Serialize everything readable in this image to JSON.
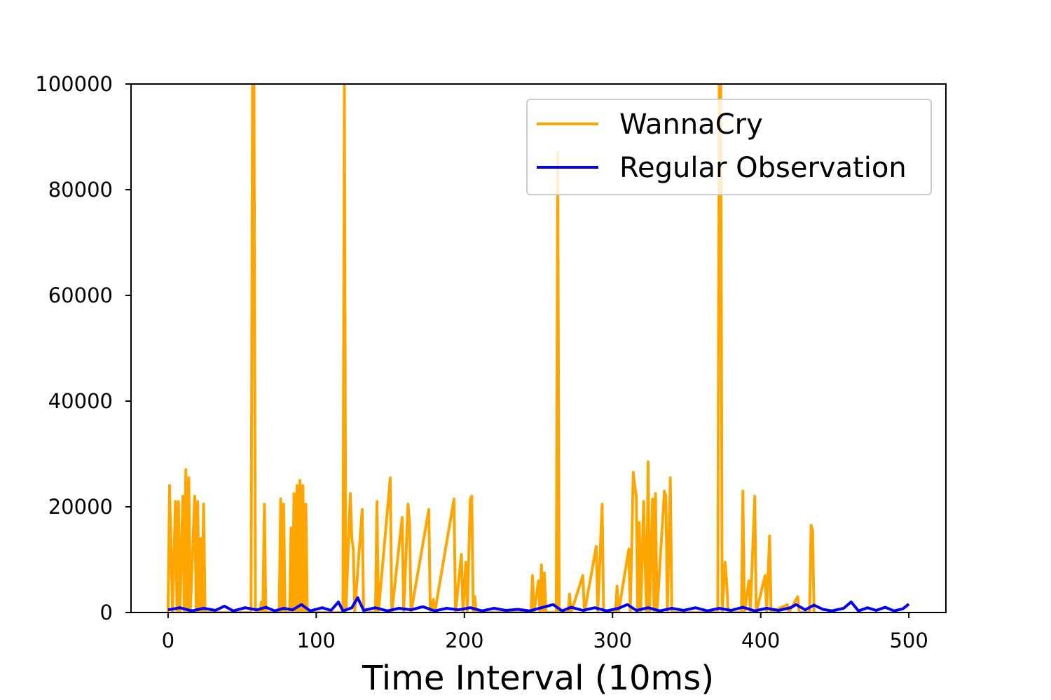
{
  "chart_data": {
    "type": "line",
    "title": "",
    "xlabel": "Time Interval (10ms)",
    "ylabel": "",
    "xlim": [
      -25,
      525
    ],
    "ylim": [
      0,
      100000
    ],
    "xticks": [
      0,
      100,
      200,
      300,
      400,
      500
    ],
    "yticks": [
      0,
      20000,
      40000,
      60000,
      80000,
      100000
    ],
    "xtick_labels": [
      "0",
      "100",
      "200",
      "300",
      "400",
      "500"
    ],
    "ytick_labels": [
      "0",
      "20000",
      "40000",
      "60000",
      "80000",
      "100000"
    ],
    "grid": false,
    "legend_position": "top-right",
    "series": [
      {
        "name": "WannaCry",
        "color": "#FFA500",
        "points": [
          [
            0,
            0
          ],
          [
            1,
            24000
          ],
          [
            3,
            0
          ],
          [
            5,
            21000
          ],
          [
            6,
            0
          ],
          [
            7,
            21000
          ],
          [
            8,
            0
          ],
          [
            10,
            22000
          ],
          [
            11,
            0
          ],
          [
            12,
            27000
          ],
          [
            13,
            0
          ],
          [
            14,
            25500
          ],
          [
            15,
            0
          ],
          [
            18,
            22000
          ],
          [
            19,
            0
          ],
          [
            20,
            21000
          ],
          [
            21,
            0
          ],
          [
            22,
            14000
          ],
          [
            23,
            0
          ],
          [
            24,
            20500
          ],
          [
            25,
            0
          ],
          [
            56,
            0
          ],
          [
            57,
            100000
          ],
          [
            58,
            100000
          ],
          [
            59,
            0
          ],
          [
            62,
            0
          ],
          [
            63,
            2000
          ],
          [
            64,
            0
          ],
          [
            65,
            20500
          ],
          [
            66,
            0
          ],
          [
            75,
            0
          ],
          [
            76,
            21500
          ],
          [
            77,
            0
          ],
          [
            78,
            20500
          ],
          [
            79,
            0
          ],
          [
            82,
            0
          ],
          [
            83,
            16000
          ],
          [
            84,
            0
          ],
          [
            85,
            22500
          ],
          [
            86,
            0
          ],
          [
            87,
            24000
          ],
          [
            88,
            0
          ],
          [
            89,
            25000
          ],
          [
            90,
            0
          ],
          [
            91,
            24000
          ],
          [
            92,
            0
          ],
          [
            93,
            20500
          ],
          [
            94,
            0
          ],
          [
            118,
            0
          ],
          [
            119,
            100000
          ],
          [
            120,
            0
          ],
          [
            123,
            22500
          ],
          [
            124,
            14000
          ],
          [
            125,
            12000
          ],
          [
            126,
            0
          ],
          [
            131,
            19500
          ],
          [
            132,
            0
          ],
          [
            140,
            0
          ],
          [
            141,
            21000
          ],
          [
            142,
            0
          ],
          [
            150,
            25500
          ],
          [
            151,
            0
          ],
          [
            158,
            18000
          ],
          [
            159,
            0
          ],
          [
            162,
            20500
          ],
          [
            163,
            17000
          ],
          [
            164,
            0
          ],
          [
            176,
            19500
          ],
          [
            177,
            0
          ],
          [
            179,
            2500
          ],
          [
            180,
            0
          ],
          [
            193,
            21500
          ],
          [
            194,
            0
          ],
          [
            198,
            11000
          ],
          [
            199,
            0
          ],
          [
            201,
            9500
          ],
          [
            202,
            0
          ],
          [
            204,
            21500
          ],
          [
            205,
            22000
          ],
          [
            206,
            0
          ],
          [
            207,
            3000
          ],
          [
            208,
            0
          ],
          [
            245,
            0
          ],
          [
            246,
            7000
          ],
          [
            247,
            0
          ],
          [
            250,
            6000
          ],
          [
            251,
            0
          ],
          [
            252,
            9000
          ],
          [
            253,
            0
          ],
          [
            254,
            7500
          ],
          [
            255,
            0
          ],
          [
            262,
            0
          ],
          [
            263,
            87000
          ],
          [
            264,
            0
          ],
          [
            270,
            0
          ],
          [
            271,
            3500
          ],
          [
            272,
            0
          ],
          [
            280,
            7000
          ],
          [
            281,
            0
          ],
          [
            289,
            12500
          ],
          [
            290,
            0
          ],
          [
            293,
            20500
          ],
          [
            294,
            0
          ],
          [
            302,
            0
          ],
          [
            303,
            5000
          ],
          [
            304,
            0
          ],
          [
            311,
            12000
          ],
          [
            312,
            0
          ],
          [
            314,
            26500
          ],
          [
            315,
            24000
          ],
          [
            316,
            22000
          ],
          [
            317,
            0
          ],
          [
            318,
            17000
          ],
          [
            319,
            0
          ],
          [
            321,
            21000
          ],
          [
            322,
            9000
          ],
          [
            323,
            0
          ],
          [
            324,
            28500
          ],
          [
            325,
            0
          ],
          [
            327,
            21500
          ],
          [
            328,
            0
          ],
          [
            329,
            22500
          ],
          [
            330,
            0
          ],
          [
            335,
            23000
          ],
          [
            336,
            22000
          ],
          [
            337,
            0
          ],
          [
            339,
            25500
          ],
          [
            340,
            0
          ],
          [
            371,
            0
          ],
          [
            372,
            100000
          ],
          [
            373,
            100000
          ],
          [
            374,
            0
          ],
          [
            376,
            9500
          ],
          [
            377,
            6000
          ],
          [
            378,
            0
          ],
          [
            387,
            0
          ],
          [
            388,
            23000
          ],
          [
            389,
            0
          ],
          [
            392,
            6000
          ],
          [
            393,
            0
          ],
          [
            396,
            22000
          ],
          [
            397,
            0
          ],
          [
            403,
            7000
          ],
          [
            404,
            0
          ],
          [
            406,
            14500
          ],
          [
            407,
            0
          ],
          [
            418,
            1500
          ],
          [
            419,
            0
          ],
          [
            425,
            3000
          ],
          [
            426,
            0
          ],
          [
            433,
            0
          ],
          [
            434,
            16500
          ],
          [
            435,
            15500
          ],
          [
            436,
            0
          ]
        ]
      },
      {
        "name": "Regular Observation",
        "color": "#0000FF",
        "points": [
          [
            0,
            500
          ],
          [
            8,
            900
          ],
          [
            16,
            300
          ],
          [
            24,
            800
          ],
          [
            32,
            400
          ],
          [
            38,
            1200
          ],
          [
            44,
            300
          ],
          [
            52,
            900
          ],
          [
            60,
            500
          ],
          [
            66,
            1000
          ],
          [
            72,
            300
          ],
          [
            78,
            800
          ],
          [
            84,
            500
          ],
          [
            90,
            1500
          ],
          [
            96,
            300
          ],
          [
            104,
            900
          ],
          [
            110,
            400
          ],
          [
            115,
            2000
          ],
          [
            118,
            300
          ],
          [
            124,
            900
          ],
          [
            128,
            2800
          ],
          [
            132,
            400
          ],
          [
            140,
            900
          ],
          [
            148,
            300
          ],
          [
            156,
            800
          ],
          [
            164,
            500
          ],
          [
            172,
            1100
          ],
          [
            180,
            300
          ],
          [
            188,
            800
          ],
          [
            196,
            500
          ],
          [
            204,
            900
          ],
          [
            212,
            300
          ],
          [
            220,
            800
          ],
          [
            228,
            400
          ],
          [
            236,
            600
          ],
          [
            244,
            300
          ],
          [
            252,
            900
          ],
          [
            260,
            1500
          ],
          [
            266,
            300
          ],
          [
            272,
            1000
          ],
          [
            280,
            400
          ],
          [
            288,
            900
          ],
          [
            296,
            300
          ],
          [
            304,
            800
          ],
          [
            310,
            1500
          ],
          [
            316,
            400
          ],
          [
            324,
            900
          ],
          [
            332,
            300
          ],
          [
            340,
            800
          ],
          [
            348,
            400
          ],
          [
            356,
            900
          ],
          [
            364,
            300
          ],
          [
            372,
            800
          ],
          [
            380,
            400
          ],
          [
            388,
            1000
          ],
          [
            396,
            300
          ],
          [
            404,
            800
          ],
          [
            412,
            400
          ],
          [
            420,
            900
          ],
          [
            424,
            1500
          ],
          [
            430,
            500
          ],
          [
            436,
            1400
          ],
          [
            442,
            600
          ],
          [
            448,
            300
          ],
          [
            456,
            800
          ],
          [
            461,
            2000
          ],
          [
            466,
            300
          ],
          [
            472,
            900
          ],
          [
            478,
            400
          ],
          [
            484,
            1000
          ],
          [
            490,
            300
          ],
          [
            496,
            700
          ],
          [
            500,
            1600
          ]
        ]
      }
    ]
  }
}
